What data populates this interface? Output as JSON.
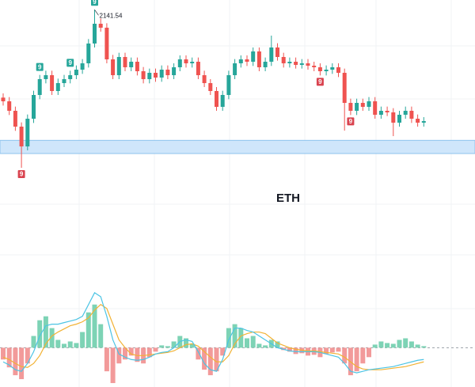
{
  "chart_data": [
    {
      "type": "candlestick",
      "symbol": "ETH",
      "ylim": [
        1800,
        2160
      ],
      "up_color": "#26a69a",
      "down_color": "#ef5350",
      "zone": {
        "low": 1869,
        "high": 1894,
        "color": "#cfe6fb",
        "border": "#8ec3ee"
      },
      "open": [
        1975,
        1968,
        1950,
        1920,
        1882.5,
        1935,
        1980,
        2010,
        2017.5,
        1987.5,
        2002.5,
        2010,
        2017.5,
        2028,
        2040,
        2077.5,
        2115,
        2107.5,
        2047.5,
        2017.5,
        2052,
        2032.5,
        2043,
        2025,
        2010,
        2022,
        2013,
        2028,
        2017.5,
        2032.5,
        2047.5,
        2040,
        2043,
        2017.5,
        2002.5,
        1987.5,
        1957.5,
        1980,
        2017.5,
        2040,
        2047.5,
        2043,
        2062.5,
        2032.5,
        2043,
        2070,
        2052,
        2040,
        2043,
        2037,
        2040,
        2035.5,
        2032.5,
        2025,
        2028,
        2032.5,
        2022,
        1965,
        1950,
        1965,
        1957.5,
        1968,
        1942.5,
        1950,
        1947,
        1927.5,
        1942.5,
        1950,
        1935,
        1927.5
      ],
      "high": [
        1983,
        1976,
        1958,
        1928,
        1943,
        1988,
        2018,
        2026,
        2026,
        2011,
        2018,
        2026,
        2036,
        2048,
        2086,
        2141.54,
        2125,
        2116,
        2056,
        2060,
        2060,
        2051,
        2051,
        2033,
        2030,
        2030,
        2036,
        2036,
        2040,
        2055,
        2055,
        2051,
        2051,
        2026,
        2010,
        1995,
        1988,
        2026,
        2048,
        2055,
        2055,
        2070,
        2070,
        2051,
        2092.5,
        2078,
        2060,
        2051,
        2051,
        2048,
        2048,
        2043,
        2040,
        2036,
        2040,
        2040,
        2030,
        1973,
        1973,
        1973,
        1976,
        1976,
        1958,
        1958,
        1955,
        1950,
        1958,
        1958,
        1943,
        1938
      ],
      "low": [
        1960,
        1942,
        1912,
        1842,
        1875,
        1927,
        1972,
        2002,
        1980,
        1980,
        1995,
        2002,
        2010,
        2020,
        2032,
        2070,
        2100,
        2040,
        2010,
        2010,
        2025,
        2025,
        2017,
        2002,
        2002,
        2005,
        2005,
        2010,
        2010,
        2025,
        2032,
        2032,
        2010,
        1995,
        1980,
        1950,
        1950,
        1972,
        2010,
        2032,
        2035,
        2035,
        2025,
        2025,
        2035,
        2045,
        2032,
        2032,
        2030,
        2030,
        2028,
        2025,
        2017,
        2017,
        2020,
        2014,
        1912.5,
        1942,
        1942,
        1950,
        1950,
        1935,
        1935,
        1940,
        1902,
        1920,
        1935,
        1927,
        1920,
        1920
      ],
      "close": [
        1968,
        1950,
        1920,
        1882.5,
        1935,
        1980,
        2010,
        2017.5,
        1987.5,
        2002.5,
        2010,
        2017.5,
        2028,
        2040,
        2077.5,
        2115,
        2107.5,
        2047.5,
        2017.5,
        2052,
        2032.5,
        2043,
        2025,
        2010,
        2022,
        2013,
        2028,
        2017.5,
        2032.5,
        2047.5,
        2040,
        2043,
        2017.5,
        2002.5,
        1987.5,
        1957.5,
        1980,
        2017.5,
        2040,
        2047.5,
        2043,
        2062.5,
        2032.5,
        2043,
        2070,
        2052,
        2040,
        2043,
        2037,
        2040,
        2035.5,
        2032.5,
        2025,
        2028,
        2032.5,
        2022,
        1965,
        1950,
        1965,
        1957.5,
        1968,
        1942.5,
        1950,
        1947,
        1927.5,
        1942.5,
        1950,
        1935,
        1927.5,
        1930.5
      ],
      "signals": [
        {
          "candle": 3,
          "label": "9",
          "side": "below",
          "color": "#d9434f"
        },
        {
          "candle": 6,
          "label": "9",
          "side": "above",
          "color": "#26a69a"
        },
        {
          "candle": 11,
          "label": "9",
          "side": "above",
          "color": "#26a69a"
        },
        {
          "candle": 15,
          "label": "9",
          "side": "above",
          "color": "#26a69a"
        },
        {
          "candle": 52,
          "label": "9",
          "side": "below",
          "color": "#d9434f"
        },
        {
          "candle": 57,
          "label": "9",
          "side": "below",
          "color": "#d9434f"
        }
      ]
    },
    {
      "type": "macd",
      "ylim": [
        -50,
        80
      ],
      "pos_color": "#7dd3b5",
      "neg_color": "#f29a9a",
      "macd_color": "#4cc4e4",
      "signal_color": "#f2b234",
      "histogram": [
        -15,
        -25,
        -35,
        -40,
        -20,
        15,
        35,
        40,
        25,
        10,
        5,
        8,
        6,
        20,
        45,
        55,
        30,
        -30,
        -45,
        -20,
        -15,
        -10,
        -18,
        -20,
        -12,
        -5,
        3,
        2,
        8,
        15,
        12,
        5,
        -15,
        -28,
        -35,
        -30,
        -10,
        25,
        30,
        25,
        12,
        15,
        5,
        3,
        10,
        8,
        -3,
        -5,
        -8,
        -7,
        -10,
        -9,
        -12,
        -8,
        -6,
        -5,
        -20,
        -35,
        -30,
        -20,
        -12,
        4,
        8,
        6,
        5,
        10,
        12,
        8,
        4,
        2
      ],
      "macd": [
        -18,
        -22,
        -28,
        -30,
        -20,
        -5,
        15,
        28,
        30,
        30,
        32,
        34,
        36,
        40,
        55,
        70,
        65,
        40,
        10,
        -8,
        -12,
        -15,
        -16,
        -15,
        -12,
        -8,
        -6,
        -5,
        0,
        8,
        10,
        8,
        -5,
        -20,
        -28,
        -30,
        -15,
        10,
        25,
        25,
        22,
        20,
        15,
        10,
        5,
        0,
        -2,
        -4,
        -5,
        -5,
        -5,
        -5,
        -6,
        -8,
        -10,
        -12,
        -20,
        -30,
        -32,
        -30,
        -28,
        -27,
        -26,
        -25,
        -24,
        -22,
        -20,
        -18,
        -16,
        -15
      ],
      "signal": [
        -12,
        -15,
        -20,
        -24,
        -25,
        -20,
        -10,
        5,
        15,
        20,
        24,
        28,
        30,
        33,
        38,
        48,
        55,
        50,
        30,
        10,
        0,
        -8,
        -10,
        -10,
        -9,
        -8,
        -7,
        -6,
        -4,
        0,
        4,
        5,
        2,
        -5,
        -12,
        -18,
        -18,
        -10,
        5,
        15,
        18,
        20,
        20,
        18,
        12,
        6,
        3,
        0,
        -2,
        -3,
        -4,
        -4,
        -5,
        -6,
        -7,
        -8,
        -12,
        -18,
        -24,
        -27,
        -28,
        -28,
        -28,
        -27,
        -26,
        -25,
        -24,
        -22,
        -20,
        -18
      ]
    }
  ]
}
